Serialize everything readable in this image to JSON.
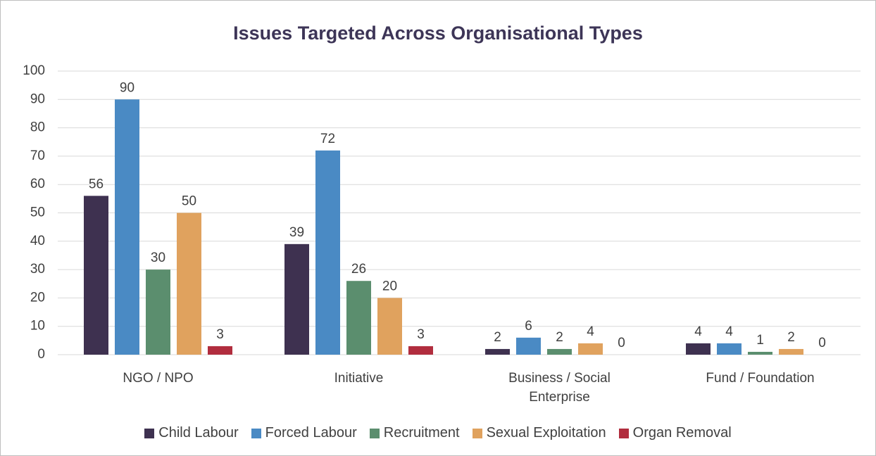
{
  "chart_data": {
    "type": "bar",
    "title": "Issues Targeted Across Organisational Types",
    "categories": [
      "NGO / NPO",
      "Initiative",
      "Business / Social Enterprise",
      "Fund / Foundation"
    ],
    "series": [
      {
        "name": "Child Labour",
        "color": "#3e3150",
        "values": [
          56,
          39,
          2,
          4
        ]
      },
      {
        "name": "Forced Labour",
        "color": "#4a8ac4",
        "values": [
          90,
          72,
          6,
          4
        ]
      },
      {
        "name": "Recruitment",
        "color": "#5b8e6e",
        "values": [
          30,
          26,
          2,
          1
        ]
      },
      {
        "name": "Sexual Exploitation",
        "color": "#e0a25e",
        "values": [
          50,
          20,
          4,
          2
        ]
      },
      {
        "name": "Organ Removal",
        "color": "#b12d3e",
        "values": [
          3,
          3,
          0,
          0
        ]
      }
    ],
    "ylim": [
      0,
      100
    ],
    "yticks": [
      0,
      10,
      20,
      30,
      40,
      50,
      60,
      70,
      80,
      90,
      100
    ],
    "grid": true,
    "legend": "bottom"
  }
}
